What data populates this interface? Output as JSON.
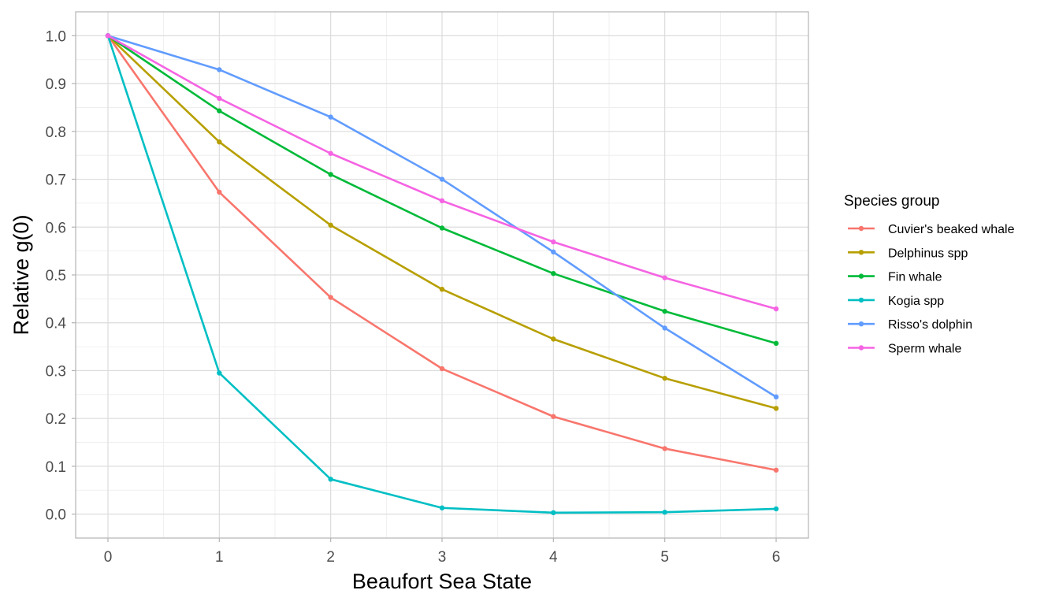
{
  "chart_data": {
    "type": "line",
    "xlabel": "Beaufort Sea State",
    "ylabel": "Relative g(0)",
    "x": [
      0,
      1,
      2,
      3,
      4,
      5,
      6
    ],
    "xlim": [
      -0.29,
      6.29
    ],
    "ylim": [
      -0.05,
      1.05
    ],
    "x_ticks": [
      "0",
      "1",
      "2",
      "3",
      "4",
      "5",
      "6"
    ],
    "y_ticks": [
      "0.0",
      "0.1",
      "0.2",
      "0.3",
      "0.4",
      "0.5",
      "0.6",
      "0.7",
      "0.8",
      "0.9",
      "1.0"
    ],
    "grid": true,
    "legend": {
      "title": "Species group",
      "placement": "right"
    },
    "series": [
      {
        "name": "Cuvier's beaked whale",
        "color": "#F8766D",
        "values": [
          1.0,
          0.673,
          0.453,
          0.304,
          0.204,
          0.137,
          0.092
        ]
      },
      {
        "name": "Delphinus spp",
        "color": "#B79F00",
        "values": [
          1.0,
          0.778,
          0.604,
          0.47,
          0.366,
          0.284,
          0.221
        ]
      },
      {
        "name": "Fin whale",
        "color": "#00BA38",
        "values": [
          1.0,
          0.843,
          0.71,
          0.598,
          0.503,
          0.424,
          0.357
        ]
      },
      {
        "name": "Kogia spp",
        "color": "#00BFC4",
        "values": [
          1.0,
          0.295,
          0.073,
          0.013,
          0.003,
          0.004,
          0.011
        ]
      },
      {
        "name": "Risso's dolphin",
        "color": "#619CFF",
        "values": [
          1.0,
          0.929,
          0.83,
          0.7,
          0.548,
          0.389,
          0.245
        ]
      },
      {
        "name": "Sperm whale",
        "color": "#F564E3",
        "values": [
          1.0,
          0.869,
          0.754,
          0.655,
          0.569,
          0.494,
          0.429
        ]
      }
    ]
  }
}
